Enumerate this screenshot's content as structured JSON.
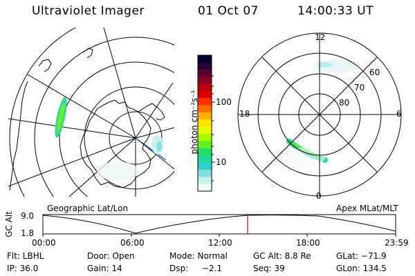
{
  "header": {
    "title": "Ultraviolet Imager",
    "date": "01 Oct 07",
    "time": "14:00:33 UT"
  },
  "left_panel": {
    "projection_label": "Geographic Lat/Lon"
  },
  "right_panel": {
    "projection_label": "Apex MLat/MLT",
    "mlt_labels": {
      "top": "12",
      "left": "18",
      "right": "6",
      "bottom": "0"
    },
    "lat_labels": [
      "60",
      "70",
      "80"
    ]
  },
  "colorbar": {
    "unit_label": "photon cm⁻²s⁻¹",
    "tick_labels": [
      "100",
      "10"
    ],
    "colors": [
      "#000033",
      "#2a003a",
      "#5a0030",
      "#8a0020",
      "#b80010",
      "#e00000",
      "#ff3000",
      "#ff7000",
      "#ffb000",
      "#ffe000",
      "#e8ff00",
      "#a8ff00",
      "#60f020",
      "#20e060",
      "#20d8a0",
      "#30d0d0",
      "#80e0e0",
      "#c8f0f0",
      "#f2fafa"
    ]
  },
  "altitude_plot": {
    "ylabel": "GC Alt",
    "ytick_top": "9.0",
    "ytick_bottom": "1.8",
    "xticks": [
      "00:00",
      "06:00",
      "12:00",
      "18:00",
      "23:59"
    ],
    "current_marker_color": "#d00000"
  },
  "info": {
    "flt": "Flt: LBHL",
    "door": "Door: Open",
    "mode": "Mode: Normal",
    "gc_alt": "GC Alt: 8.8 Re",
    "glat": "GLat: −71.9",
    "ip": "IP: 36.0",
    "gain": "Gain: 14",
    "dsp_label": "Dsp:",
    "dsp_value": "−2.1",
    "seq": "Seq: 39",
    "glon": "GLon: 134.5"
  }
}
